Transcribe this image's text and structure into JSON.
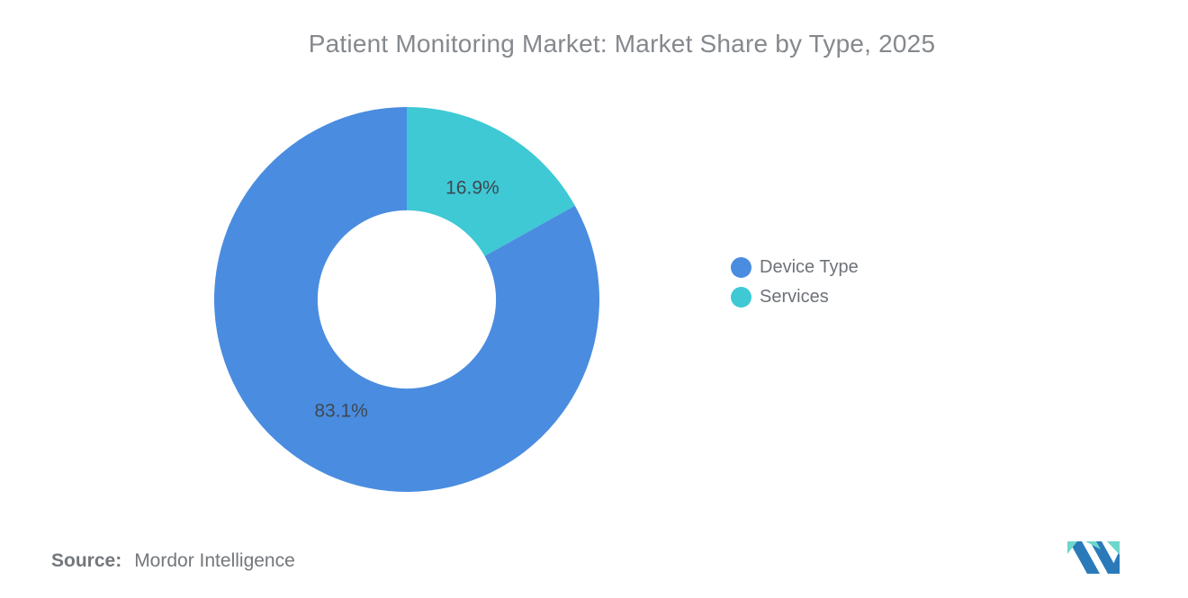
{
  "title": "Patient Monitoring Market: Market Share by Type, 2025",
  "chart_data": {
    "type": "pie",
    "subtype": "donut",
    "title": "Patient Monitoring Market: Market Share by Type, 2025",
    "categories": [
      "Device Type",
      "Services"
    ],
    "series": [
      {
        "name": "Device Type",
        "value": 83.1,
        "label": "83.1%",
        "color": "#4a8ce0"
      },
      {
        "name": "Services",
        "value": 16.9,
        "label": "16.9%",
        "color": "#3ec9d4"
      }
    ],
    "start_angle_deg": 0,
    "direction": "clockwise",
    "inner_radius_ratio": 0.463,
    "label_color": "#3e4852",
    "label_radius_ratio": 0.39,
    "legend_position": "right",
    "grid": false
  },
  "legend": {
    "items": [
      {
        "label": "Device Type",
        "color": "#4a8ce0"
      },
      {
        "label": "Services",
        "color": "#3ec9d4"
      }
    ]
  },
  "source": {
    "label": "Source:",
    "value": "Mordor Intelligence"
  },
  "logo": {
    "alt": "Mordor Intelligence logo",
    "blue": "#2a7aba",
    "teal": "#6ed6cd"
  }
}
